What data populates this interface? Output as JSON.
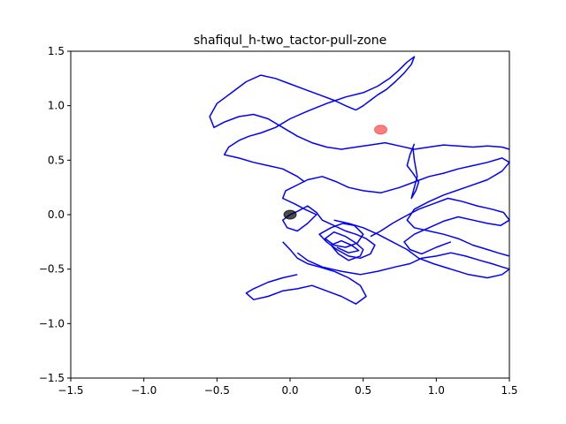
{
  "chart_data": {
    "type": "line",
    "title": "shafiqul_h-two_tactor-pull-zone",
    "xlabel": "",
    "ylabel": "",
    "xlim": [
      -1.5,
      1.5
    ],
    "ylim": [
      -1.5,
      1.5
    ],
    "grid": false,
    "x_ticks": [
      -1.5,
      -1.0,
      -0.5,
      0.0,
      0.5,
      1.0,
      1.5
    ],
    "x_tick_labels": [
      "−1.5",
      "−1.0",
      "−0.5",
      "0.0",
      "0.5",
      "1.0",
      "1.5"
    ],
    "y_ticks": [
      -1.5,
      -1.0,
      -0.5,
      0.0,
      0.5,
      1.0,
      1.5
    ],
    "y_tick_labels": [
      "−1.5",
      "−1.0",
      "−0.5",
      "0.0",
      "0.5",
      "1.0",
      "1.5"
    ],
    "series": [
      {
        "color": "#0000ff",
        "x": [
          0.0,
          0.05,
          0.12,
          0.18,
          0.22,
          0.3,
          0.38,
          0.45,
          0.52,
          0.58,
          0.55,
          0.48,
          0.4,
          0.32,
          0.25,
          0.2,
          0.28,
          0.36,
          0.44,
          0.5,
          0.46,
          0.38,
          0.3,
          0.24,
          0.3,
          0.38,
          0.45,
          0.5,
          0.48,
          0.4,
          0.33,
          0.28,
          0.35,
          0.42,
          0.47,
          0.4,
          0.32
        ],
        "y": [
          0.0,
          0.03,
          0.08,
          0.02,
          -0.05,
          -0.1,
          -0.15,
          -0.18,
          -0.22,
          -0.28,
          -0.36,
          -0.4,
          -0.38,
          -0.32,
          -0.25,
          -0.18,
          -0.12,
          -0.08,
          -0.1,
          -0.18,
          -0.26,
          -0.3,
          -0.28,
          -0.22,
          -0.16,
          -0.2,
          -0.26,
          -0.32,
          -0.38,
          -0.42,
          -0.36,
          -0.28,
          -0.24,
          -0.28,
          -0.33,
          -0.35,
          -0.3
        ]
      },
      {
        "color": "#0000ff",
        "x": [
          0.0,
          -0.05,
          -0.02,
          0.05,
          0.12,
          0.18,
          0.1,
          0.03,
          -0.05,
          -0.03,
          0.06,
          0.12,
          0.22,
          0.32,
          0.4,
          0.5,
          0.62,
          0.75,
          0.85,
          0.95,
          1.05,
          1.15,
          1.25,
          1.35,
          1.45,
          1.5,
          1.45,
          1.35,
          1.2,
          1.05,
          0.95,
          0.85,
          0.8,
          0.85,
          0.95,
          1.05,
          1.15,
          1.25,
          1.35,
          1.42,
          1.5
        ],
        "y": [
          0.0,
          -0.05,
          -0.12,
          -0.15,
          -0.08,
          0.0,
          0.05,
          0.1,
          0.15,
          0.22,
          0.28,
          0.32,
          0.35,
          0.3,
          0.25,
          0.22,
          0.2,
          0.25,
          0.3,
          0.35,
          0.38,
          0.42,
          0.45,
          0.48,
          0.52,
          0.48,
          0.4,
          0.32,
          0.25,
          0.18,
          0.12,
          0.05,
          -0.05,
          -0.12,
          -0.15,
          -0.18,
          -0.22,
          -0.28,
          -0.32,
          -0.35,
          -0.38
        ]
      },
      {
        "color": "#0000ff",
        "x": [
          0.1,
          0.05,
          -0.05,
          -0.15,
          -0.25,
          -0.35,
          -0.45,
          -0.42,
          -0.35,
          -0.28,
          -0.2,
          -0.1,
          0.0,
          0.12,
          0.25,
          0.38,
          0.5,
          0.6,
          0.68,
          0.74,
          0.8,
          0.85,
          0.83,
          0.78,
          0.72,
          0.66,
          0.6,
          0.55,
          0.5,
          0.45
        ],
        "y": [
          0.3,
          0.35,
          0.42,
          0.45,
          0.48,
          0.52,
          0.55,
          0.62,
          0.68,
          0.72,
          0.75,
          0.8,
          0.88,
          0.95,
          1.02,
          1.08,
          1.12,
          1.18,
          1.25,
          1.32,
          1.4,
          1.45,
          1.38,
          1.3,
          1.22,
          1.15,
          1.1,
          1.05,
          1.0,
          0.96
        ]
      },
      {
        "color": "#0000ff",
        "x": [
          0.45,
          0.38,
          0.3,
          0.2,
          0.1,
          0.0,
          -0.1,
          -0.2,
          -0.3,
          -0.4,
          -0.5,
          -0.55,
          -0.52,
          -0.45,
          -0.35,
          -0.25,
          -0.15,
          -0.05,
          0.05,
          0.15,
          0.25,
          0.35,
          0.45,
          0.55,
          0.65,
          0.75,
          0.85,
          0.95,
          1.05,
          1.15,
          1.25,
          1.35,
          1.45,
          1.5
        ],
        "y": [
          0.96,
          1.0,
          1.05,
          1.1,
          1.15,
          1.2,
          1.25,
          1.28,
          1.22,
          1.12,
          1.02,
          0.9,
          0.8,
          0.85,
          0.9,
          0.92,
          0.88,
          0.8,
          0.72,
          0.66,
          0.62,
          0.6,
          0.62,
          0.64,
          0.66,
          0.63,
          0.6,
          0.62,
          0.64,
          0.63,
          0.62,
          0.63,
          0.62,
          0.6
        ]
      },
      {
        "color": "#0000ff",
        "x": [
          0.05,
          0.12,
          0.22,
          0.35,
          0.48,
          0.6,
          0.72,
          0.82,
          0.9,
          1.0,
          1.1,
          1.2,
          1.3,
          1.38,
          1.45,
          1.5,
          1.45,
          1.35,
          1.22,
          1.1,
          0.98,
          0.88,
          0.8,
          0.7,
          0.6,
          0.5,
          0.4,
          0.3
        ],
        "y": [
          -0.35,
          -0.42,
          -0.48,
          -0.52,
          -0.55,
          -0.52,
          -0.48,
          -0.45,
          -0.4,
          -0.38,
          -0.35,
          -0.38,
          -0.42,
          -0.45,
          -0.48,
          -0.5,
          -0.55,
          -0.58,
          -0.55,
          -0.5,
          -0.45,
          -0.4,
          -0.32,
          -0.25,
          -0.18,
          -0.12,
          -0.08,
          -0.05
        ]
      },
      {
        "color": "#0000ff",
        "x": [
          0.05,
          -0.05,
          -0.15,
          -0.25,
          -0.3,
          -0.25,
          -0.15,
          -0.05,
          0.05,
          0.15,
          0.25,
          0.35,
          0.45,
          0.52,
          0.48,
          0.4,
          0.3,
          0.2,
          0.12,
          0.05,
          0.0,
          -0.05
        ],
        "y": [
          -0.55,
          -0.58,
          -0.62,
          -0.68,
          -0.72,
          -0.78,
          -0.75,
          -0.7,
          -0.68,
          -0.65,
          -0.7,
          -0.75,
          -0.82,
          -0.75,
          -0.65,
          -0.58,
          -0.52,
          -0.48,
          -0.45,
          -0.4,
          -0.32,
          -0.25
        ]
      },
      {
        "color": "#0000ff",
        "x": [
          0.55,
          0.62,
          0.7,
          0.78,
          0.88,
          0.98,
          1.08,
          1.18,
          1.28,
          1.38,
          1.46,
          1.5,
          1.44,
          1.35,
          1.25,
          1.15,
          1.05,
          0.95,
          0.85,
          0.78,
          0.82,
          0.9,
          1.0,
          1.1
        ],
        "y": [
          -0.2,
          -0.15,
          -0.08,
          -0.02,
          0.05,
          0.1,
          0.15,
          0.12,
          0.08,
          0.05,
          0.02,
          -0.05,
          -0.1,
          -0.08,
          -0.05,
          -0.02,
          -0.06,
          -0.12,
          -0.18,
          -0.25,
          -0.32,
          -0.36,
          -0.3,
          -0.25
        ]
      },
      {
        "color": "#0000ff",
        "x": [
          0.85,
          0.82,
          0.8,
          0.84,
          0.88,
          0.86,
          0.83,
          0.87,
          0.85,
          0.84
        ],
        "y": [
          0.65,
          0.55,
          0.45,
          0.38,
          0.3,
          0.22,
          0.15,
          0.35,
          0.5,
          0.62
        ]
      }
    ],
    "markers": [
      {
        "x": 0.62,
        "y": 0.78,
        "color": "#ff0000",
        "alpha": 0.5
      },
      {
        "x": 0.0,
        "y": 0.0,
        "color": "#000000",
        "alpha": 0.7
      }
    ]
  }
}
